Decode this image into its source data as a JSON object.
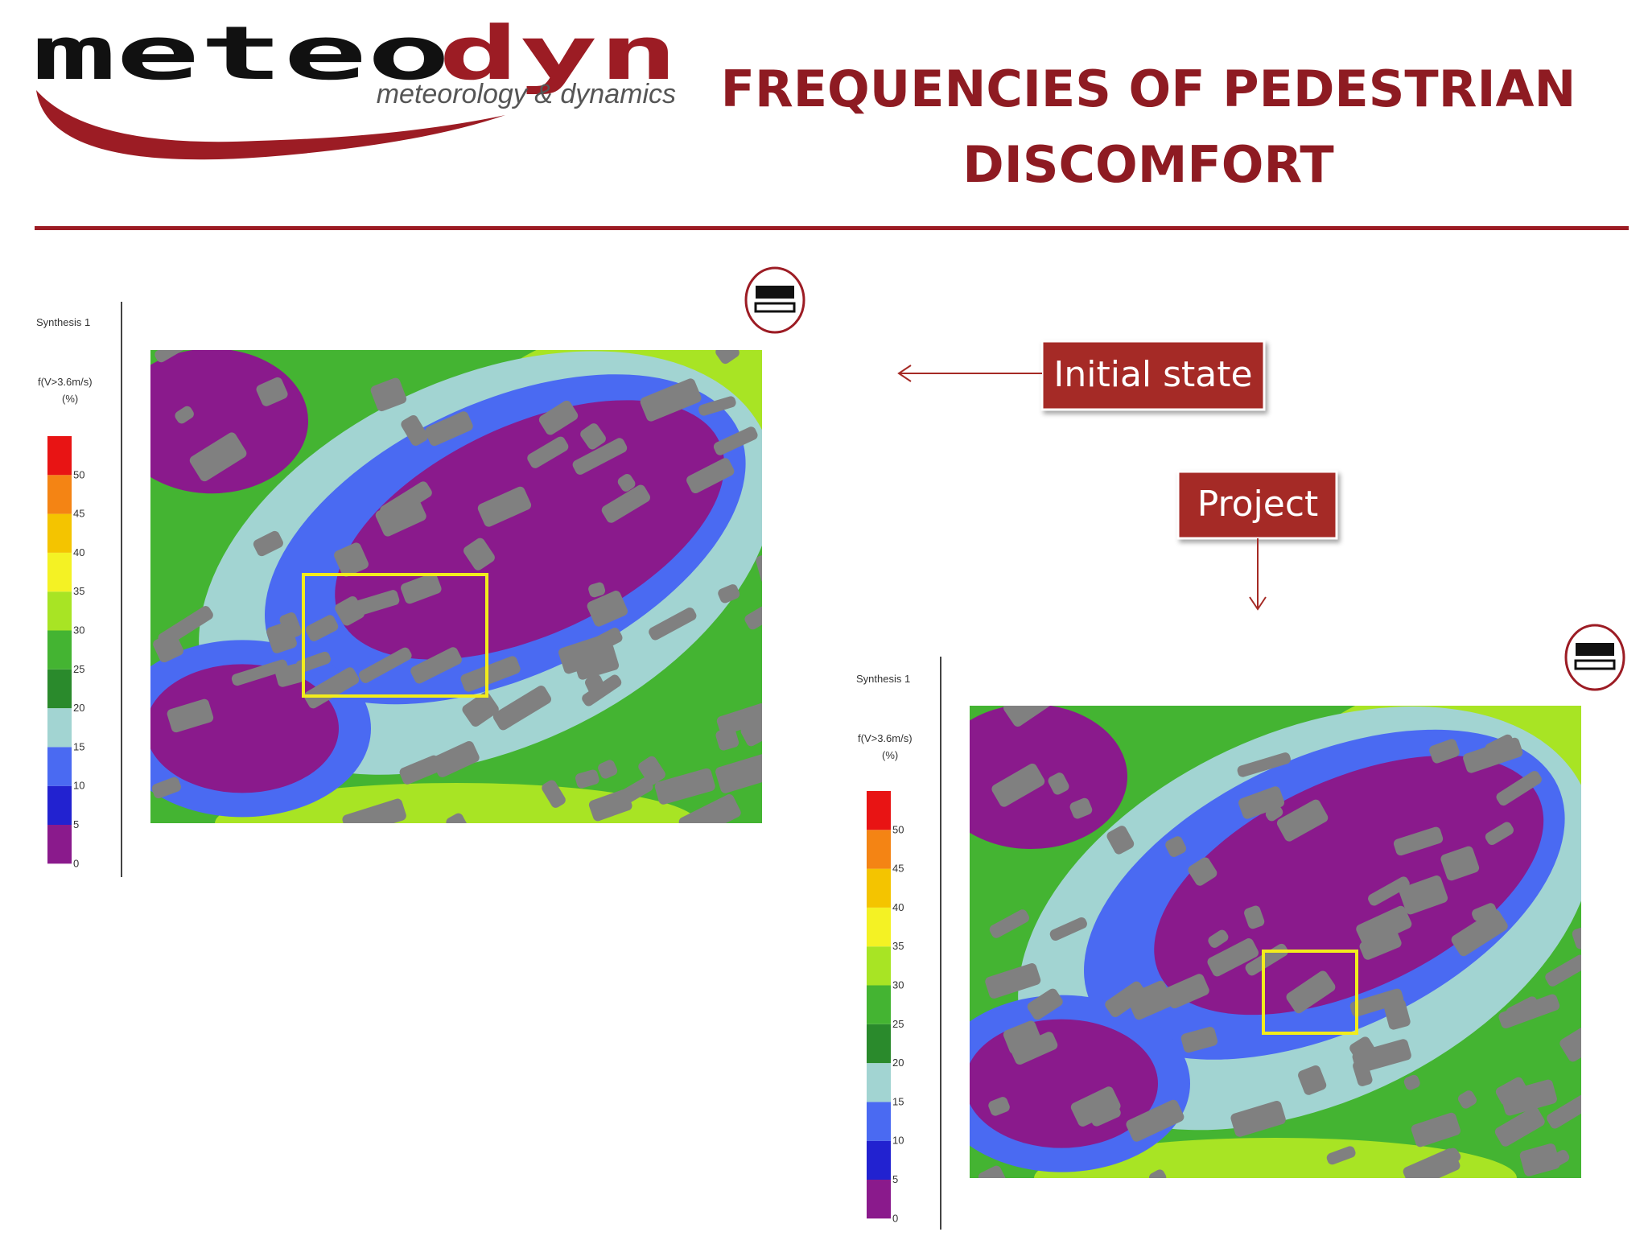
{
  "header": {
    "logo_main": "meteo",
    "logo_accent": "dyn",
    "tagline": "meteorology & dynamics",
    "title_line1": "FREQUENCIES OF PEDESTRIAN",
    "title_line2": "DISCOMFORT"
  },
  "callouts": {
    "initial": "Initial state",
    "project": "Project"
  },
  "legend_colors": [
    "#8a1a8c",
    "#2222d0",
    "#4a6af2",
    "#a2d4d2",
    "#2a8a2c",
    "#44b432",
    "#a8e424",
    "#f4f224",
    "#f4c400",
    "#f48414",
    "#e81414"
  ],
  "legends": [
    {
      "title": "Synthesis 1",
      "variable": "f(V>3.6m/s)",
      "unit": "(%)",
      "ticks": [
        0,
        5,
        10,
        15,
        20,
        25,
        30,
        35,
        40,
        45,
        50
      ]
    },
    {
      "title": "Synthesis 1",
      "variable": "f(V>3.6m/s)",
      "unit": "(%)",
      "ticks": [
        0,
        5,
        10,
        15,
        20,
        25,
        30,
        35,
        40,
        45,
        50
      ]
    }
  ]
}
